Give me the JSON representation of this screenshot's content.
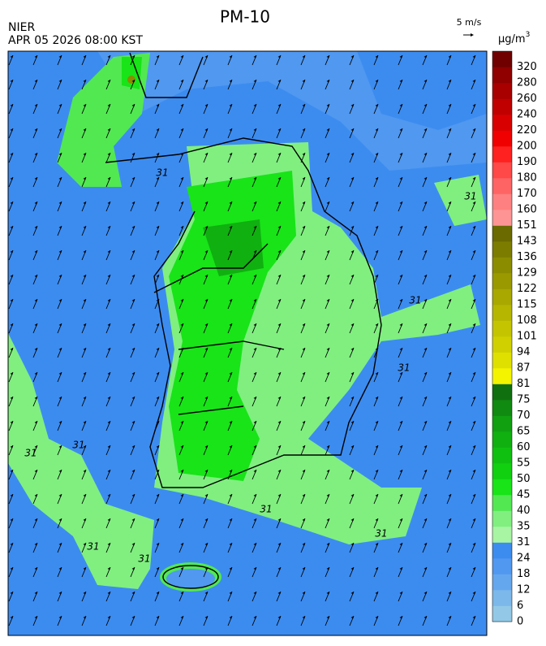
{
  "header": {
    "title": "PM-10",
    "agency": "NIER",
    "datetime": "APR 05 2026 08:00 KST",
    "wind_scale": "5 m/s"
  },
  "legend": {
    "unit": "µg/m",
    "unit_exponent": "3",
    "labels": [
      "0",
      "6",
      "12",
      "18",
      "24",
      "31",
      "35",
      "40",
      "45",
      "50",
      "55",
      "60",
      "65",
      "70",
      "75",
      "81",
      "87",
      "94",
      "101",
      "108",
      "115",
      "122",
      "129",
      "136",
      "143",
      "151",
      "160",
      "170",
      "180",
      "190",
      "200",
      "220",
      "240",
      "260",
      "280",
      "320"
    ],
    "colors": [
      "#93c9e6",
      "#7cb8ea",
      "#65a7ee",
      "#5098f0",
      "#3c8cf0",
      "#a8f5a4",
      "#80ef80",
      "#52e852",
      "#18e418",
      "#10d010",
      "#10c010",
      "#10b010",
      "#10a010",
      "#108a10",
      "#107010",
      "#f4f400",
      "#e0e000",
      "#d0d000",
      "#c4c400",
      "#b6b600",
      "#a8a800",
      "#9a9a00",
      "#8c8c00",
      "#7c7c00",
      "#6a6a00",
      "#ff9494",
      "#ff8080",
      "#ff6464",
      "#ff4848",
      "#ff2020",
      "#f00000",
      "#d80000",
      "#c00000",
      "#a80000",
      "#900000",
      "#700000"
    ]
  },
  "map": {
    "contour_labels": [
      "31",
      "31",
      "31",
      "31",
      "31",
      "31",
      "31",
      "31",
      "31",
      "31"
    ]
  }
}
